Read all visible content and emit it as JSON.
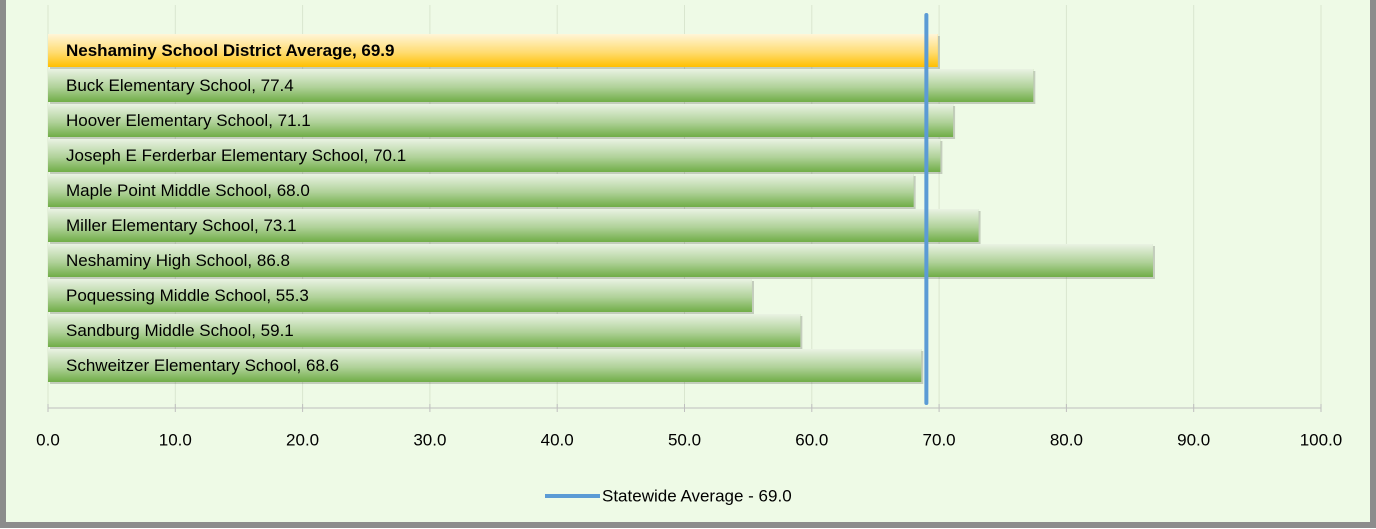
{
  "chart_data": {
    "type": "bar",
    "orientation": "horizontal",
    "categories": [
      "Neshaminy School District Average, 69.9",
      "Buck Elementary School, 77.4",
      "Hoover Elementary School, 71.1",
      "Joseph E Ferderbar Elementary School, 70.1",
      "Maple Point Middle School, 68.0",
      "Miller Elementary School, 73.1",
      "Neshaminy High School, 86.8",
      "Poquessing Middle School, 55.3",
      "Sandburg Middle School, 59.1",
      "Schweitzer Elementary School, 68.6"
    ],
    "values": [
      69.9,
      77.4,
      71.1,
      70.1,
      68.0,
      73.1,
      86.8,
      55.3,
      59.1,
      68.6
    ],
    "color": "#70ad47",
    "highlight": 0,
    "highlight_color": "#ffc000",
    "xlim": [
      0,
      100
    ],
    "xticks": [
      {
        "value": 0,
        "label": "0.0"
      },
      {
        "value": 10,
        "label": "10.0"
      },
      {
        "value": 20,
        "label": "20.0"
      },
      {
        "value": 30,
        "label": "30.0"
      },
      {
        "value": 40,
        "label": "40.0"
      },
      {
        "value": 50,
        "label": "50.0"
      },
      {
        "value": 60,
        "label": "60.0"
      },
      {
        "value": 70,
        "label": "70.0"
      },
      {
        "value": 80,
        "label": "80.0"
      },
      {
        "value": 90,
        "label": "90.0"
      },
      {
        "value": 100,
        "label": "100.0"
      }
    ],
    "grid": true,
    "reference_line": {
      "name": "Statewide Average - 69.0",
      "value": 69.0,
      "color": "#5b9bd5"
    },
    "legend": "bottom"
  }
}
